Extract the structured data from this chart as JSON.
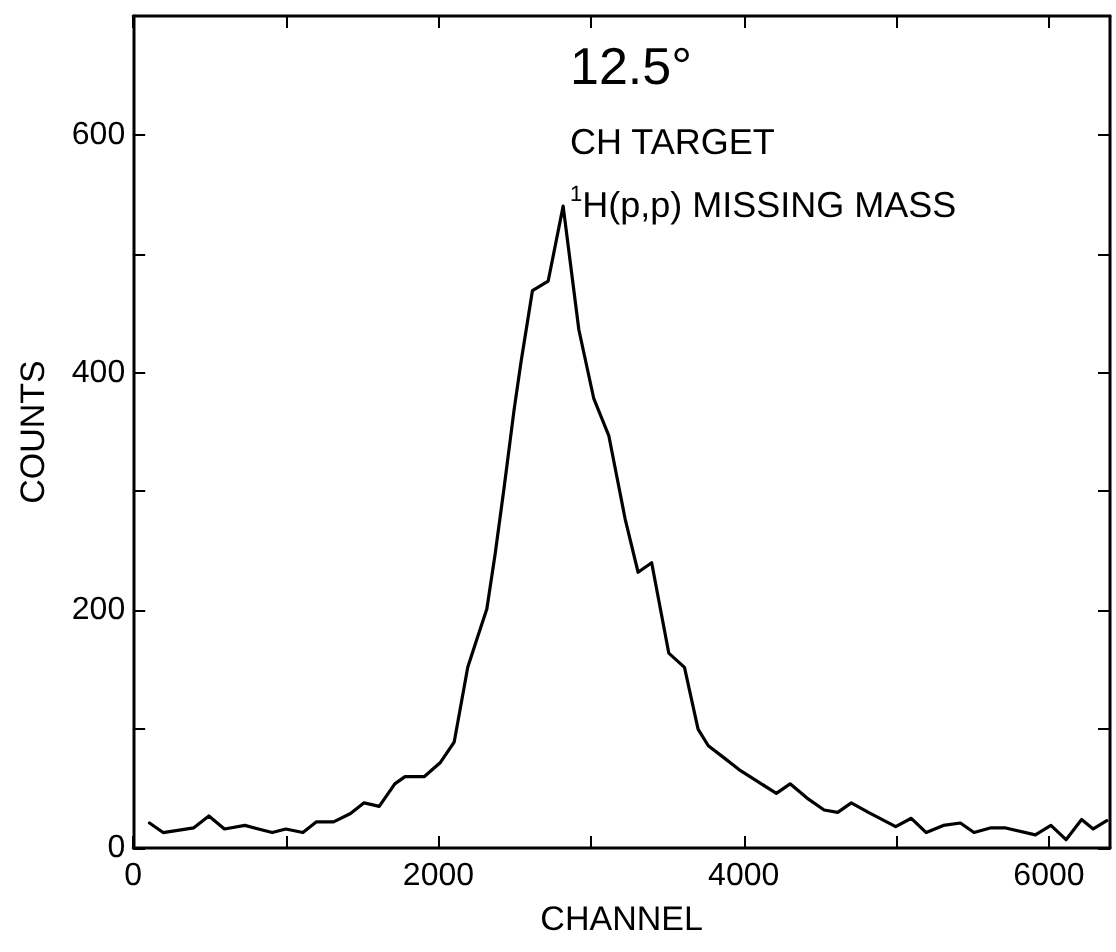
{
  "chart_data": {
    "type": "line",
    "xlabel": "CHANNEL",
    "ylabel": "COUNTS",
    "annotations": [
      "12.5°",
      "CH TARGET",
      "$^{1}$H(p,p) MISSING MASS"
    ],
    "x": [
      107,
      196,
      397,
      496,
      598,
      732,
      911,
      1000,
      1112,
      1201,
      1313,
      1424,
      1513,
      1612,
      1714,
      1781,
      1906,
      2013,
      2103,
      2192,
      2250,
      2317,
      2371,
      2429,
      2496,
      2540,
      2616,
      2719,
      2817,
      2920,
      3018,
      3116,
      3223,
      3308,
      3397,
      3509,
      3612,
      3701,
      3768,
      3880,
      3969,
      4103,
      4214,
      4304,
      4415,
      4527,
      4616,
      4705,
      4817,
      4996,
      5098,
      5196,
      5308,
      5420,
      5509,
      5621,
      5710,
      5911,
      6013,
      6112,
      6214,
      6290,
      6379
    ],
    "series": [
      {
        "color": "#000000",
        "values": [
          21,
          13,
          17,
          27,
          16,
          19,
          13,
          16,
          13,
          22,
          22,
          29,
          38,
          35,
          54,
          60,
          60,
          72,
          89,
          152,
          175,
          201,
          247,
          302,
          369,
          408,
          469,
          477,
          540,
          436,
          378,
          347,
          277,
          232,
          240,
          164,
          152,
          100,
          86,
          75,
          66,
          55,
          46,
          54,
          42,
          32,
          30,
          38,
          30,
          18,
          25,
          13,
          19,
          21,
          13,
          17,
          17,
          11,
          19,
          7,
          24,
          16,
          23
        ]
      }
    ],
    "xlim": [
      0,
      6400
    ],
    "ylim": [
      0,
      700
    ],
    "xticks": [
      0,
      {
        "value": 1000,
        "label": null
      },
      2000,
      {
        "value": 3000,
        "label": null
      },
      4000,
      {
        "value": 5000,
        "label": null
      },
      6000
    ],
    "yticks": [
      0,
      {
        "value": 100,
        "label": null
      },
      200,
      {
        "value": 300,
        "label": null
      },
      400,
      {
        "value": 500,
        "label": null
      },
      600
    ],
    "grid": false,
    "marker": "none",
    "line_style": "solid"
  }
}
